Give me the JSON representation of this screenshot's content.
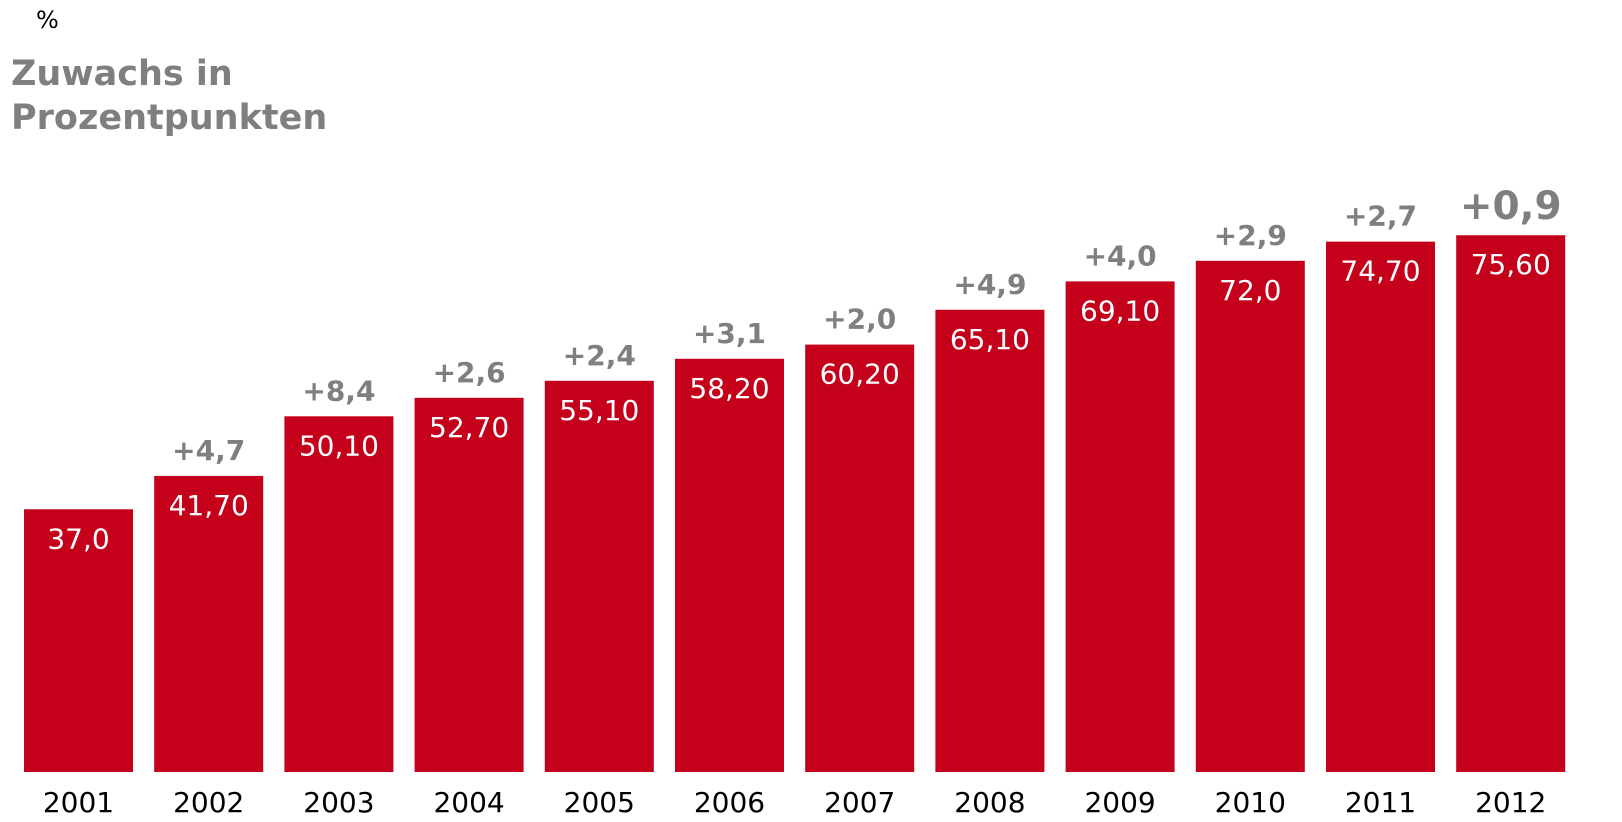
{
  "unit_label": "%",
  "legend": {
    "line1": "Zuwachs in",
    "line2": "Prozentpunkten"
  },
  "colors": {
    "bar": "#c4001a",
    "bar_label": "#ffffff",
    "increment": "#7f7f7f",
    "axis_text": "#000000"
  },
  "chart_data": {
    "type": "bar",
    "categories": [
      "2001",
      "2002",
      "2003",
      "2004",
      "2005",
      "2006",
      "2007",
      "2008",
      "2009",
      "2010",
      "2011",
      "2012"
    ],
    "values": [
      37.0,
      41.7,
      50.1,
      52.7,
      55.1,
      58.2,
      60.2,
      65.1,
      69.1,
      72.0,
      74.7,
      75.6
    ],
    "value_labels": [
      "37,0",
      "41,70",
      "50,10",
      "52,70",
      "55,10",
      "58,20",
      "60,20",
      "65,10",
      "69,10",
      "72,0",
      "74,70",
      "75,60"
    ],
    "increments": [
      null,
      4.7,
      8.4,
      2.6,
      2.4,
      3.1,
      2.0,
      4.9,
      4.0,
      2.9,
      2.7,
      0.9
    ],
    "increment_labels": [
      "",
      "+4,7",
      "+8,4",
      "+2,6",
      "+2,4",
      "+3,1",
      "+2,0",
      "+4,9",
      "+4,0",
      "+2,9",
      "+2,7",
      "+0,9"
    ],
    "highlighted_increment": "2012",
    "ylim": [
      0,
      100
    ],
    "grid": false
  }
}
